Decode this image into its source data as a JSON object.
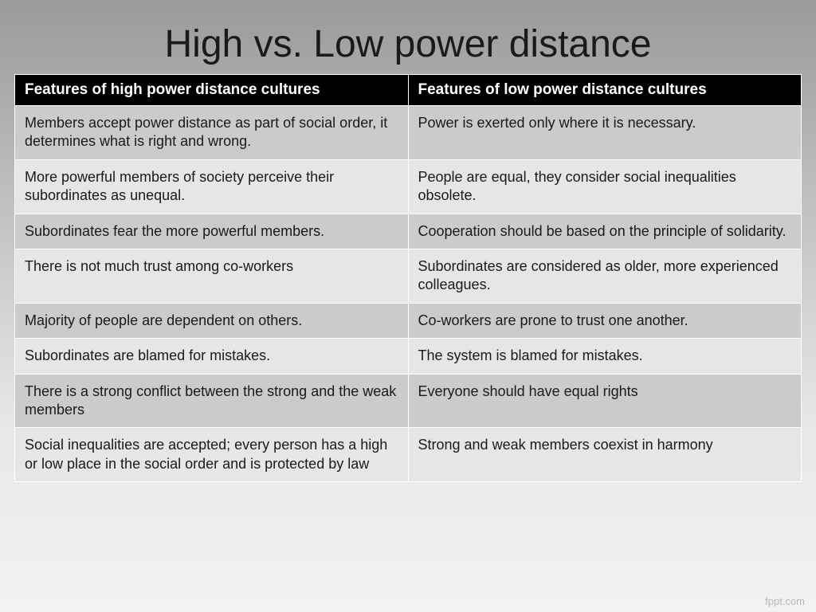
{
  "title": "High vs. Low power distance",
  "table": {
    "columns": [
      "Features of high power distance cultures",
      "Features of low power distance cultures"
    ],
    "rows": [
      [
        "Members accept power distance as part of social order, it determines what is right and wrong.",
        "Power is exerted only where it is necessary."
      ],
      [
        "More powerful members of society perceive their subordinates as unequal.",
        "People are equal, they consider social inequalities obsolete."
      ],
      [
        "Subordinates fear the more powerful members.",
        "Cooperation should be based on the principle of solidarity."
      ],
      [
        "There is not much trust among co-workers",
        "Subordinates are considered as older, more experienced colleagues."
      ],
      [
        "Majority of people are dependent on others.",
        "Co-workers are prone to trust one another."
      ],
      [
        "Subordinates are blamed for mistakes.",
        "The system is blamed for  mistakes."
      ],
      [
        "There is a strong conflict between the strong and the weak members",
        "Everyone should have equal rights"
      ],
      [
        "Social inequalities are accepted; every person has a high or low place in the social order and is protected by law",
        "Strong and weak members coexist in harmony"
      ]
    ],
    "header_bg": "#000000",
    "header_text_color": "#ffffff",
    "row_odd_bg": "#cbcbcb",
    "row_even_bg": "#e6e6e6",
    "border_color": "#ffffff",
    "title_fontsize": 48,
    "header_fontsize": 19,
    "cell_fontsize": 18,
    "text_color": "#1a1a1a"
  },
  "background": {
    "gradient_start": "#9a9a9a",
    "gradient_end": "#f2f2f2"
  },
  "watermark": "fppt.com"
}
